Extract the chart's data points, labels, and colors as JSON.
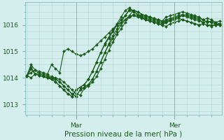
{
  "xlabel": "Pression niveau de la mer( hPa )",
  "background_color": "#d4eeed",
  "grid_color": "#b0d4d4",
  "line_color": "#1a5c1a",
  "marker_color": "#1a5c1a",
  "yticks": [
    1013,
    1014,
    1015,
    1016
  ],
  "ylim": [
    1012.6,
    1016.85
  ],
  "xlim": [
    -0.5,
    47.5
  ],
  "xtick_positions": [
    12,
    36
  ],
  "xtick_labels": [
    "Mar",
    "Mer"
  ],
  "series": [
    [
      1014.05,
      1014.4,
      1014.15,
      1014.1,
      1014.05,
      1014.0,
      1014.0,
      1013.95,
      1013.85,
      1013.7,
      1013.55,
      1013.4,
      1013.3,
      1013.55,
      1013.65,
      1013.75,
      1013.95,
      1014.25,
      1014.6,
      1014.95,
      1015.25,
      1015.5,
      1015.75,
      1016.0,
      1016.2,
      1016.35,
      1016.55,
      1016.5,
      1016.4,
      1016.35,
      1016.3,
      1016.25,
      1016.2,
      1016.15,
      1016.1,
      1016.2,
      1016.25,
      1016.3,
      1016.35,
      1016.4,
      1016.35,
      1016.3,
      1016.25,
      1016.2,
      1016.1,
      1016.15,
      1016.1,
      1016.05
    ],
    [
      1014.05,
      1014.35,
      1014.15,
      1014.1,
      1014.05,
      1014.0,
      1013.95,
      1013.85,
      1013.7,
      1013.55,
      1013.4,
      1013.3,
      1013.55,
      1013.65,
      1013.75,
      1013.95,
      1014.25,
      1014.6,
      1014.95,
      1015.3,
      1015.55,
      1015.8,
      1016.05,
      1016.3,
      1016.55,
      1016.65,
      1016.5,
      1016.4,
      1016.3,
      1016.25,
      1016.2,
      1016.15,
      1016.1,
      1016.05,
      1016.15,
      1016.2,
      1016.25,
      1016.3,
      1016.35,
      1016.3,
      1016.25,
      1016.2,
      1016.15,
      1016.1,
      1016.15,
      1016.1,
      1016.05,
      1016.0
    ],
    [
      1014.1,
      1014.0,
      1014.15,
      1014.2,
      1014.15,
      1014.1,
      1014.05,
      1014.0,
      1013.95,
      1013.85,
      1013.7,
      1013.55,
      1013.4,
      1013.35,
      1013.6,
      1013.7,
      1013.85,
      1014.05,
      1014.35,
      1014.7,
      1015.05,
      1015.35,
      1015.65,
      1015.85,
      1016.1,
      1016.3,
      1016.4,
      1016.35,
      1016.3,
      1016.2,
      1016.15,
      1016.1,
      1016.05,
      1016.0,
      1015.95,
      1016.05,
      1016.1,
      1016.15,
      1016.2,
      1016.15,
      1016.1,
      1016.05,
      1016.0,
      1016.05,
      1016.0,
      1015.95,
      1016.0,
      1016.05
    ],
    [
      1014.1,
      1014.5,
      1014.3,
      1014.15,
      1014.1,
      1014.05,
      1014.0,
      1013.95,
      1013.85,
      1013.7,
      1013.55,
      1013.4,
      1013.3,
      1013.55,
      1013.65,
      1013.75,
      1013.95,
      1014.25,
      1014.6,
      1014.95,
      1015.3,
      1015.6,
      1015.85,
      1016.1,
      1016.35,
      1016.6,
      1016.55,
      1016.5,
      1016.4,
      1016.35,
      1016.3,
      1016.25,
      1016.2,
      1016.15,
      1016.3,
      1016.35,
      1016.4,
      1016.45,
      1016.5,
      1016.45,
      1016.4,
      1016.35,
      1016.3,
      1016.2,
      1016.25,
      1016.2,
      1016.1,
      1016.15
    ],
    [
      1014.1,
      1014.2,
      1014.3,
      1014.25,
      1014.2,
      1014.15,
      1014.5,
      1014.35,
      1014.2,
      1015.0,
      1015.1,
      1015.0,
      1014.9,
      1014.85,
      1014.9,
      1015.0,
      1015.1,
      1015.25,
      1015.4,
      1015.55,
      1015.7,
      1015.85,
      1016.0,
      1016.1,
      1016.2,
      1016.3,
      1016.35,
      1016.3,
      1016.25,
      1016.2,
      1016.15,
      1016.1,
      1016.05,
      1016.0,
      1016.1,
      1016.15,
      1016.2,
      1016.25,
      1016.2,
      1016.15,
      1016.1,
      1016.05,
      1016.0,
      1016.05,
      1016.0,
      1016.0,
      1016.0,
      1016.0
    ],
    [
      1014.05,
      1014.35,
      1014.15,
      1014.1,
      1014.05,
      1014.0,
      1013.95,
      1013.85,
      1013.7,
      1013.55,
      1013.4,
      1013.3,
      1013.55,
      1013.65,
      1013.75,
      1013.95,
      1014.25,
      1014.6,
      1014.95,
      1015.25,
      1015.5,
      1015.75,
      1016.0,
      1016.2,
      1016.35,
      1016.55,
      1016.5,
      1016.4,
      1016.35,
      1016.3,
      1016.25,
      1016.2,
      1016.15,
      1016.1,
      1016.2,
      1016.25,
      1016.3,
      1016.35,
      1016.4,
      1016.35,
      1016.3,
      1016.25,
      1016.2,
      1016.1,
      1016.15,
      1016.1,
      1016.05,
      1016.0
    ]
  ],
  "font_color": "#1a5c1a",
  "tick_font_size": 6.5,
  "label_font_size": 7.5,
  "line_width": 0.8,
  "marker_size": 2.0
}
